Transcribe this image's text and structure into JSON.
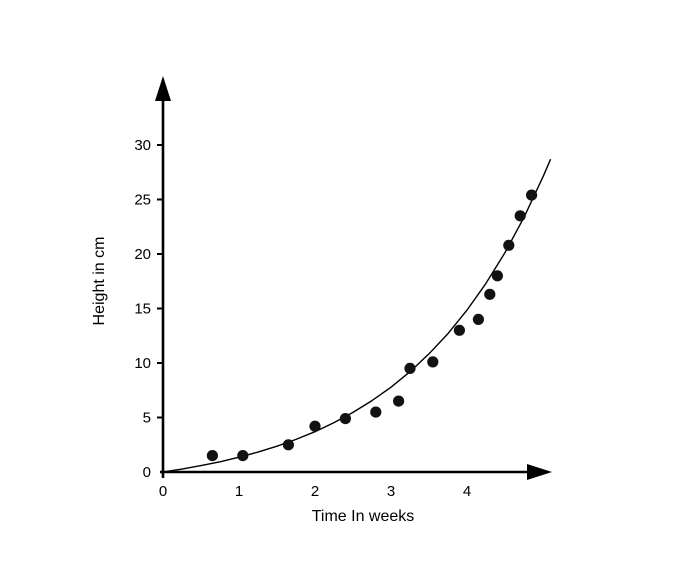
{
  "chart_data": {
    "type": "scatter",
    "title": "",
    "xlabel": "Time In weeks",
    "ylabel": "Height in cm",
    "xticks": [
      0,
      1,
      2,
      3,
      4
    ],
    "yticks": [
      0,
      5,
      10,
      15,
      20,
      25,
      30
    ],
    "xlim": [
      0,
      5.3
    ],
    "ylim": [
      0,
      33
    ],
    "grid": false,
    "legend": "none",
    "points": [
      [
        0.65,
        1.5
      ],
      [
        1.05,
        1.5
      ],
      [
        1.65,
        2.5
      ],
      [
        2.0,
        4.2
      ],
      [
        2.4,
        4.9
      ],
      [
        2.8,
        5.5
      ],
      [
        3.1,
        6.5
      ],
      [
        3.25,
        9.5
      ],
      [
        3.55,
        10.1
      ],
      [
        3.9,
        13.0
      ],
      [
        4.15,
        14.0
      ],
      [
        4.3,
        16.3
      ],
      [
        4.4,
        18.0
      ],
      [
        4.55,
        20.8
      ],
      [
        4.7,
        23.5
      ],
      [
        4.85,
        25.4
      ]
    ],
    "fit_curve": [
      [
        0,
        0
      ],
      [
        0.25,
        0.27
      ],
      [
        0.5,
        0.59
      ],
      [
        0.75,
        0.94
      ],
      [
        1,
        1.36
      ],
      [
        1.25,
        1.83
      ],
      [
        1.5,
        2.37
      ],
      [
        1.75,
        2.99
      ],
      [
        2,
        3.7
      ],
      [
        2.25,
        4.53
      ],
      [
        2.5,
        5.47
      ],
      [
        2.75,
        6.55
      ],
      [
        3,
        7.78
      ],
      [
        3.25,
        9.2
      ],
      [
        3.5,
        10.84
      ],
      [
        3.75,
        12.7
      ],
      [
        4,
        14.85
      ],
      [
        4.25,
        17.31
      ],
      [
        4.5,
        20.13
      ],
      [
        4.75,
        23.37
      ],
      [
        5,
        27.08
      ],
      [
        5.1,
        28.7
      ]
    ],
    "colors": {
      "points": "#121212",
      "curve": "#000000",
      "axes": "#000000",
      "background": "#ffffff",
      "text": "#000000"
    }
  }
}
